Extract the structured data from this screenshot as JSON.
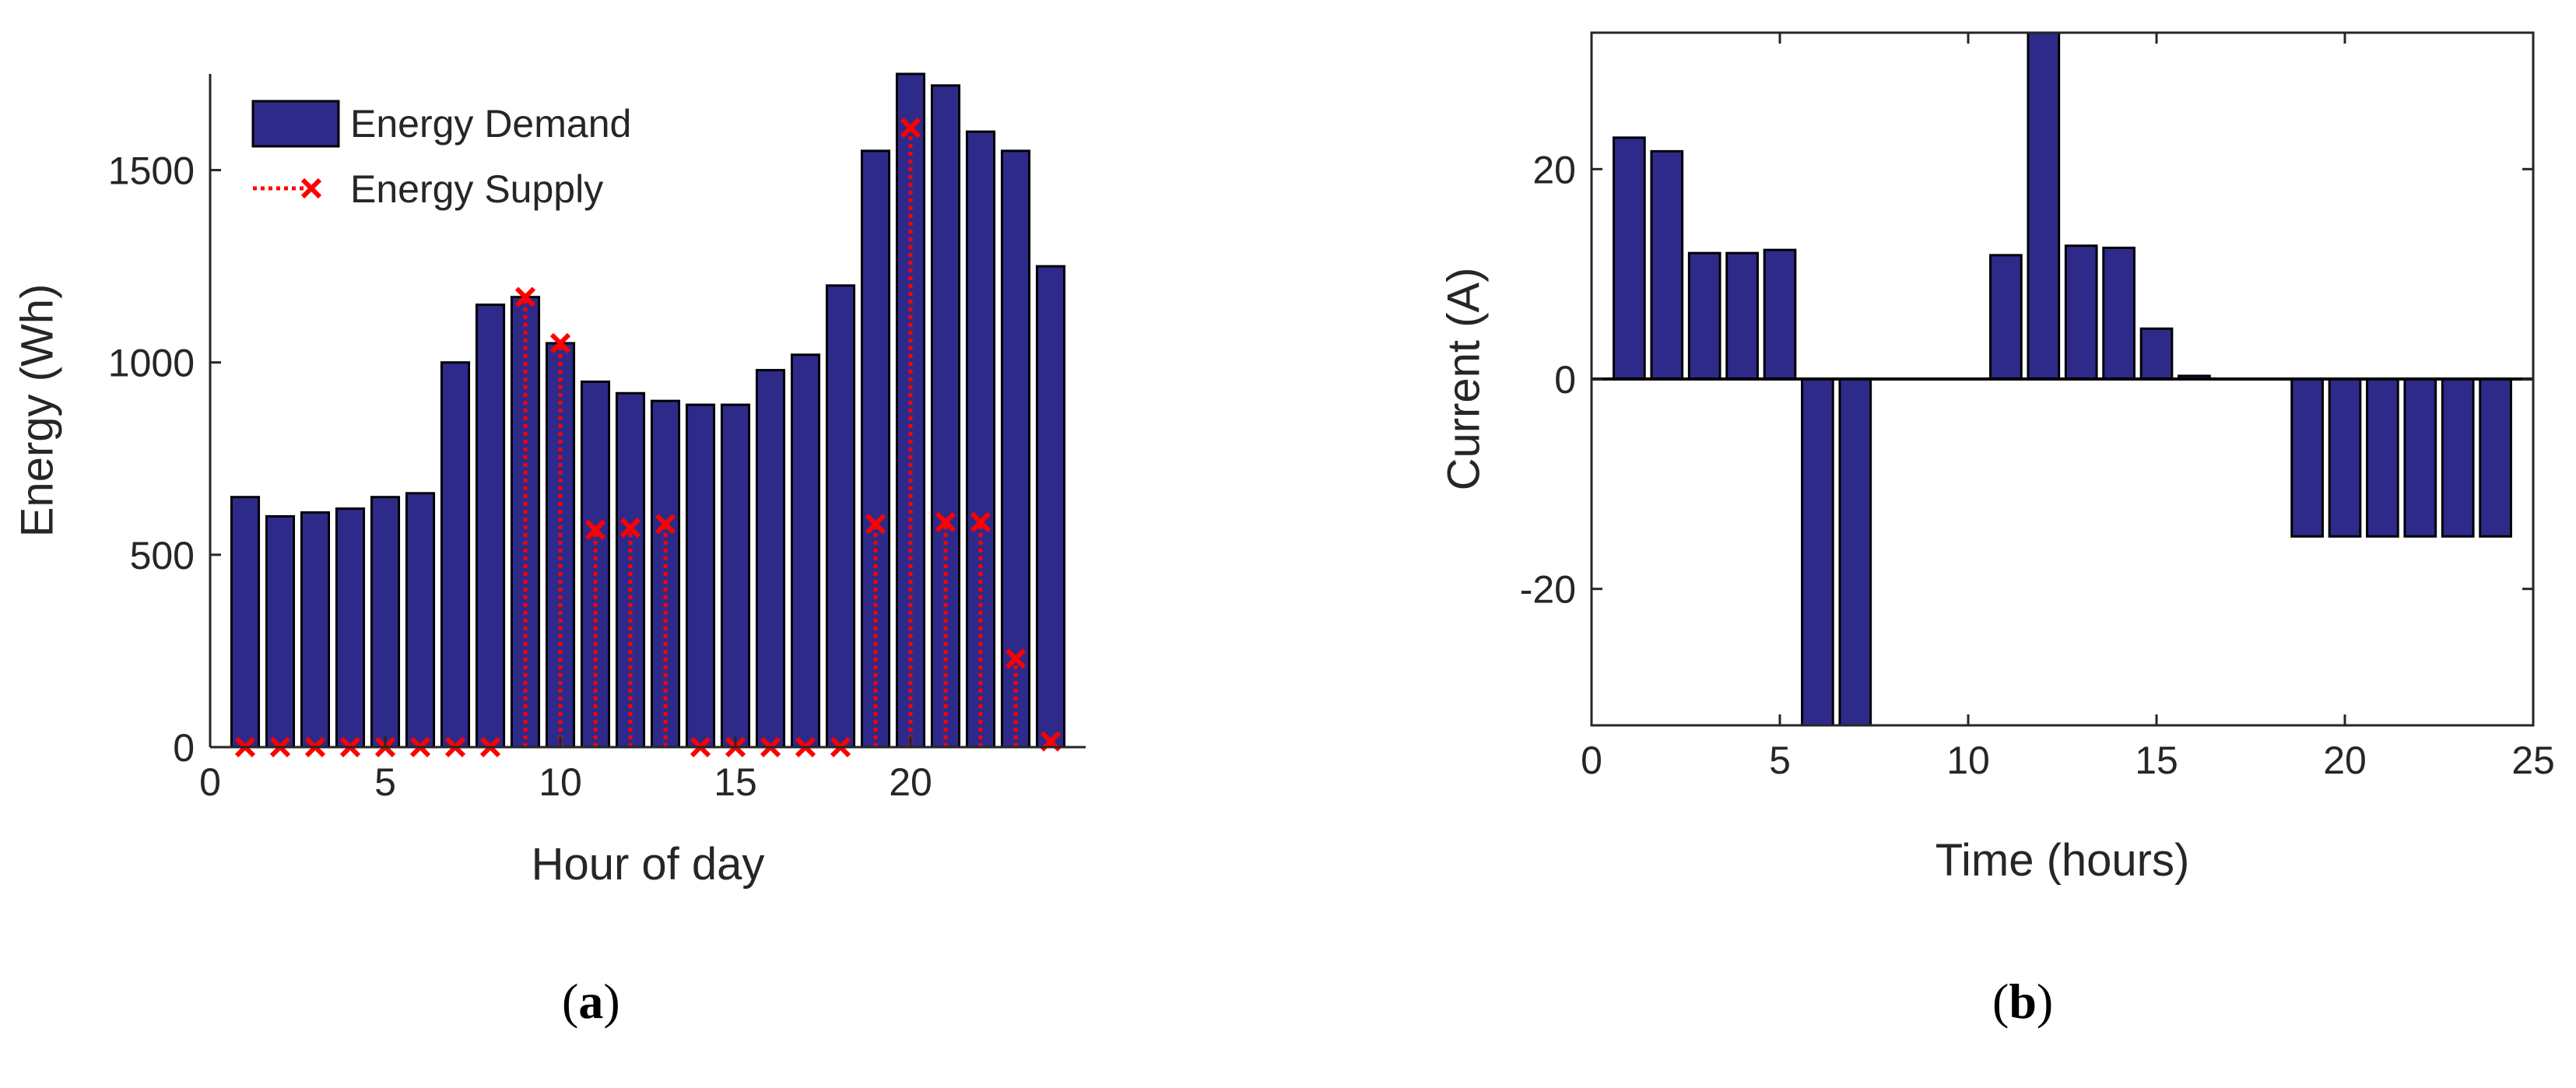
{
  "colors": {
    "bar_fill": "#2E2A8A",
    "bar_edge": "#000000",
    "supply": "#FF0000",
    "axis": "#262626",
    "text": "#262626"
  },
  "chart_data": [
    {
      "id": "a",
      "type": "bar",
      "xlabel": "Hour of day",
      "ylabel": "Energy (Wh)",
      "xlim": [
        0,
        25
      ],
      "ylim": [
        0,
        1750
      ],
      "xticks": [
        0,
        5,
        10,
        15,
        20
      ],
      "yticks": [
        0,
        500,
        1000,
        1500
      ],
      "x": [
        1,
        2,
        3,
        4,
        5,
        6,
        7,
        8,
        9,
        10,
        11,
        12,
        13,
        14,
        15,
        16,
        17,
        18,
        19,
        20,
        21,
        22,
        23,
        24
      ],
      "series": [
        {
          "name": "Energy Demand",
          "type": "bar",
          "values": [
            650,
            600,
            610,
            620,
            650,
            660,
            1000,
            1150,
            1170,
            1050,
            950,
            920,
            900,
            890,
            890,
            980,
            1020,
            1200,
            1550,
            1750,
            1720,
            1600,
            1550,
            1250
          ]
        },
        {
          "name": "Energy Supply",
          "type": "stem",
          "values": [
            0,
            0,
            0,
            0,
            0,
            0,
            0,
            0,
            1170,
            1050,
            565,
            570,
            580,
            0,
            0,
            0,
            0,
            0,
            580,
            1610,
            585,
            585,
            230,
            15
          ]
        }
      ],
      "legend": {
        "position": "top-left",
        "entries": [
          "Energy Demand",
          "Energy Supply"
        ]
      },
      "panel_label": "a"
    },
    {
      "id": "b",
      "type": "bar",
      "xlabel": "Time (hours)",
      "ylabel": "Current (A)",
      "xlim": [
        0,
        25
      ],
      "ylim": [
        -33,
        33
      ],
      "xticks": [
        0,
        5,
        10,
        15,
        20,
        25
      ],
      "yticks": [
        -20,
        0,
        20
      ],
      "x": [
        1,
        2,
        3,
        4,
        5,
        6,
        7,
        8,
        9,
        10,
        11,
        12,
        13,
        14,
        15,
        16,
        17,
        18,
        19,
        20,
        21,
        22,
        23,
        24
      ],
      "series": [
        {
          "name": "Current",
          "type": "bar",
          "values": [
            23,
            21.7,
            12,
            12,
            12.3,
            -33,
            -33,
            0,
            0,
            0,
            11.8,
            33,
            12.7,
            12.5,
            4.8,
            0.3,
            0,
            0,
            -15,
            -15,
            -15,
            -15,
            -15,
            -15
          ]
        }
      ],
      "panel_label": "b"
    }
  ]
}
